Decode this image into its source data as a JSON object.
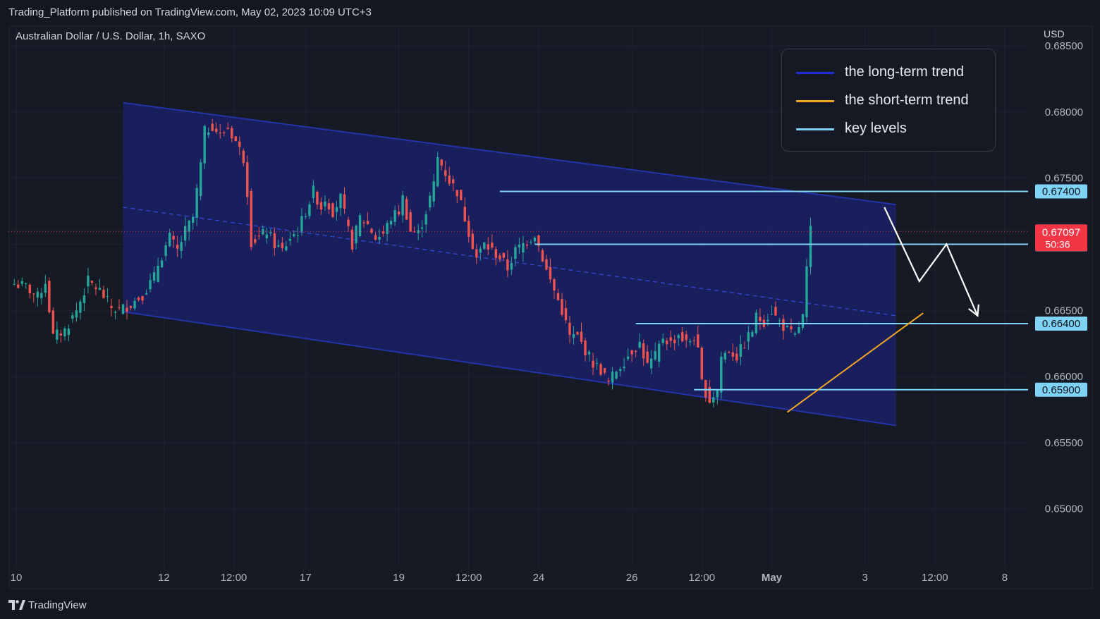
{
  "header": {
    "published": "Trading_Platform published on TradingView.com, May 02, 2023 10:09 UTC+3"
  },
  "symbol": {
    "title": "Australian Dollar / U.S. Dollar, 1h, SAXO",
    "currency": "USD"
  },
  "legend": {
    "items": [
      {
        "label": "the long-term trend",
        "color": "#1e2fd8"
      },
      {
        "label": "the short-term trend",
        "color": "#f5a623"
      },
      {
        "label": "key levels",
        "color": "#7fd3f7"
      }
    ]
  },
  "footer": {
    "brand": "TradingView"
  },
  "colors": {
    "background": "#131722",
    "up": "#26a69a",
    "down": "#ef5350",
    "channel_line": "#2433a8",
    "channel_fill": "#1a2166",
    "key_level": "#7fd3f7",
    "short_trend": "#f5a623",
    "price_label": "#f23645"
  },
  "chart_data": {
    "type": "candlestick",
    "title": "Australian Dollar / U.S. Dollar, 1h, SAXO",
    "xlabel": "",
    "ylabel": "USD",
    "ylim": [
      0.6455,
      0.6865
    ],
    "grid": true,
    "y_ticks": [
      "0.68500",
      "0.68000",
      "0.67500",
      "0.67000",
      "0.66500",
      "0.66000",
      "0.65500",
      "0.65000"
    ],
    "y_tick_values": [
      0.685,
      0.68,
      0.675,
      0.67,
      0.665,
      0.66,
      0.655,
      0.65
    ],
    "x_ticks": [
      {
        "label": "10",
        "t": 0.5
      },
      {
        "label": "12",
        "t": 38.5
      },
      {
        "label": "12:00",
        "t": 56.5
      },
      {
        "label": "17",
        "t": 75
      },
      {
        "label": "19",
        "t": 99
      },
      {
        "label": "12:00",
        "t": 117
      },
      {
        "label": "24",
        "t": 135
      },
      {
        "label": "26",
        "t": 159
      },
      {
        "label": "12:00",
        "t": 177
      },
      {
        "label": "May",
        "t": 195,
        "bold": true
      },
      {
        "label": "3",
        "t": 219
      },
      {
        "label": "12:00",
        "t": 237
      },
      {
        "label": "8",
        "t": 255
      }
    ],
    "close_path": [
      [
        0,
        0.667
      ],
      [
        3,
        0.6668
      ],
      [
        6,
        0.666
      ],
      [
        8,
        0.6672
      ],
      [
        10,
        0.663
      ],
      [
        13,
        0.6635
      ],
      [
        16,
        0.665
      ],
      [
        19,
        0.6672
      ],
      [
        22,
        0.6665
      ],
      [
        25,
        0.6652
      ],
      [
        27,
        0.665
      ],
      [
        30,
        0.6655
      ],
      [
        33,
        0.6662
      ],
      [
        36,
        0.6675
      ],
      [
        37,
        0.6685
      ],
      [
        40,
        0.6705
      ],
      [
        42,
        0.6695
      ],
      [
        44,
        0.671
      ],
      [
        46,
        0.672
      ],
      [
        48,
        0.676
      ],
      [
        49,
        0.6785
      ],
      [
        51,
        0.679
      ],
      [
        53,
        0.6782
      ],
      [
        55,
        0.6788
      ],
      [
        57,
        0.6778
      ],
      [
        59,
        0.6765
      ],
      [
        60,
        0.674
      ],
      [
        61,
        0.6702
      ],
      [
        63,
        0.6705
      ],
      [
        65,
        0.671
      ],
      [
        67,
        0.67
      ],
      [
        69,
        0.6695
      ],
      [
        71,
        0.6705
      ],
      [
        73,
        0.671
      ],
      [
        75,
        0.6725
      ],
      [
        77,
        0.674
      ],
      [
        79,
        0.6728
      ],
      [
        80,
        0.6735
      ],
      [
        82,
        0.6725
      ],
      [
        84,
        0.6735
      ],
      [
        86,
        0.671
      ],
      [
        87,
        0.67
      ],
      [
        89,
        0.672
      ],
      [
        91,
        0.6715
      ],
      [
        93,
        0.6705
      ],
      [
        95,
        0.6708
      ],
      [
        97,
        0.672
      ],
      [
        99,
        0.6725
      ],
      [
        100,
        0.6735
      ],
      [
        102,
        0.671
      ],
      [
        104,
        0.6708
      ],
      [
        106,
        0.6725
      ],
      [
        108,
        0.6745
      ],
      [
        109,
        0.6765
      ],
      [
        110,
        0.676
      ],
      [
        112,
        0.6748
      ],
      [
        114,
        0.674
      ],
      [
        116,
        0.672
      ],
      [
        118,
        0.67
      ],
      [
        119,
        0.669
      ],
      [
        121,
        0.67
      ],
      [
        123,
        0.6695
      ],
      [
        125,
        0.669
      ],
      [
        127,
        0.6682
      ],
      [
        129,
        0.6695
      ],
      [
        131,
        0.67
      ],
      [
        133,
        0.6705
      ],
      [
        134,
        0.6708
      ],
      [
        136,
        0.669
      ],
      [
        137,
        0.668
      ],
      [
        139,
        0.6665
      ],
      [
        141,
        0.665
      ],
      [
        143,
        0.663
      ],
      [
        145,
        0.663
      ],
      [
        147,
        0.662
      ],
      [
        149,
        0.661
      ],
      [
        151,
        0.6605
      ],
      [
        153,
        0.6595
      ],
      [
        155,
        0.6605
      ],
      [
        157,
        0.6612
      ],
      [
        159,
        0.662
      ],
      [
        161,
        0.6625
      ],
      [
        163,
        0.6608
      ],
      [
        165,
        0.6615
      ],
      [
        167,
        0.663
      ],
      [
        169,
        0.6625
      ],
      [
        171,
        0.6632
      ],
      [
        173,
        0.6625
      ],
      [
        175,
        0.663
      ],
      [
        176,
        0.6618
      ],
      [
        177,
        0.6595
      ],
      [
        179,
        0.6582
      ],
      [
        181,
        0.659
      ],
      [
        182,
        0.6615
      ],
      [
        184,
        0.662
      ],
      [
        186,
        0.6615
      ],
      [
        188,
        0.6625
      ],
      [
        190,
        0.6635
      ],
      [
        191,
        0.6645
      ],
      [
        193,
        0.6642
      ],
      [
        195,
        0.665
      ],
      [
        196,
        0.6645
      ],
      [
        198,
        0.6638
      ],
      [
        199,
        0.6635
      ],
      [
        200,
        0.6632
      ],
      [
        201,
        0.663
      ],
      [
        202,
        0.6638
      ],
      [
        203,
        0.6645
      ],
      [
        204,
        0.668
      ],
      [
        205,
        0.671
      ]
    ],
    "candle_span": [
      0,
      205
    ],
    "x_range": [
      -1.5,
      261
    ],
    "key_levels": [
      {
        "value": 0.674,
        "label": "0.67400",
        "from_t": 125
      },
      {
        "value": 0.67,
        "label": "0.67000",
        "from_t": 134
      },
      {
        "value": 0.664,
        "label": "0.66400",
        "from_t": 160
      },
      {
        "value": 0.659,
        "label": "0.65900",
        "from_t": 175
      }
    ],
    "current_price": {
      "value": 0.67097,
      "label": "0.67097",
      "countdown": "50:36"
    },
    "channel": {
      "start_t": 28,
      "end_t": 227,
      "upper": [
        0.6807,
        0.673
      ],
      "mid": [
        0.6728,
        0.6646
      ],
      "lower": [
        0.6649,
        0.6563
      ]
    },
    "short_trend": [
      [
        199,
        0.6573
      ],
      [
        234,
        0.6648
      ]
    ],
    "projection": [
      [
        224,
        0.6728
      ],
      [
        233,
        0.6672
      ],
      [
        240,
        0.67
      ],
      [
        248,
        0.6646
      ]
    ]
  }
}
